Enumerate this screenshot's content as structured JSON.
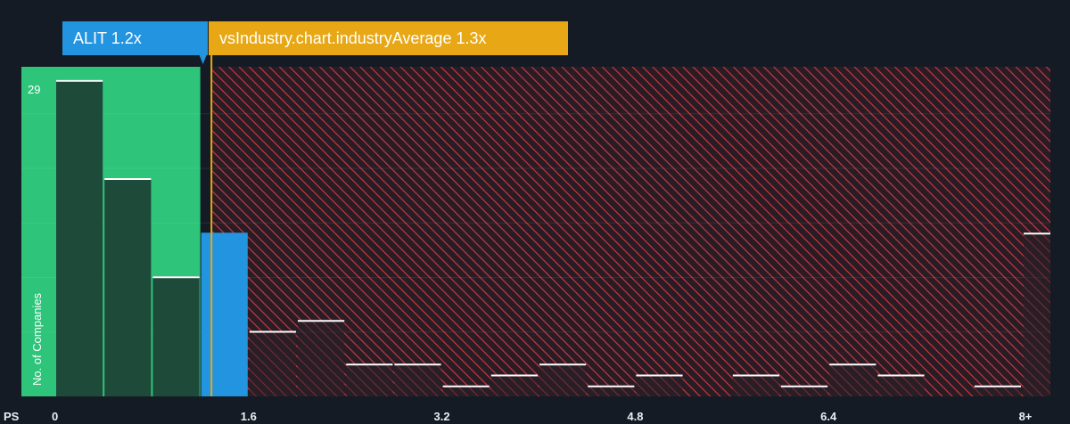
{
  "badges": {
    "company": "ALIT 1.2x",
    "industry": "vsIndustry.chart.industryAverage 1.3x"
  },
  "colors": {
    "background": "#151b24",
    "company_zone": "#2ec47a",
    "company_bar": "#2394e0",
    "industry_marker": "#e8a816",
    "hatch": "#d03a44",
    "bar_dark": "#1e4a3a"
  },
  "chart_data": {
    "type": "bar",
    "xlabel": "PS",
    "ylabel": "No. of Companies",
    "x_tick_labels": [
      "0",
      "1.6",
      "3.2",
      "4.8",
      "6.4",
      "8+"
    ],
    "x_ticks": [
      0,
      1.6,
      3.2,
      4.8,
      6.4,
      8
    ],
    "y_max_label": "29",
    "ylim": [
      0,
      30
    ],
    "company_value": 1.2,
    "industry_average": 1.3,
    "bin_width": 0.4,
    "bins": [
      {
        "x0": 0.0,
        "count": 29
      },
      {
        "x0": 0.4,
        "count": 20
      },
      {
        "x0": 0.8,
        "count": 11
      },
      {
        "x0": 1.2,
        "count": 15,
        "company": true
      },
      {
        "x0": 1.6,
        "count": 6
      },
      {
        "x0": 2.0,
        "count": 7
      },
      {
        "x0": 2.4,
        "count": 3
      },
      {
        "x0": 2.8,
        "count": 3
      },
      {
        "x0": 3.2,
        "count": 1
      },
      {
        "x0": 3.6,
        "count": 2
      },
      {
        "x0": 4.0,
        "count": 3
      },
      {
        "x0": 4.4,
        "count": 1
      },
      {
        "x0": 4.8,
        "count": 2
      },
      {
        "x0": 5.6,
        "count": 2
      },
      {
        "x0": 6.0,
        "count": 1
      },
      {
        "x0": 6.4,
        "count": 3
      },
      {
        "x0": 6.8,
        "count": 2
      },
      {
        "x0": 7.6,
        "count": 1
      },
      {
        "x0": 8.0,
        "count": 15,
        "overflow": true
      }
    ]
  }
}
